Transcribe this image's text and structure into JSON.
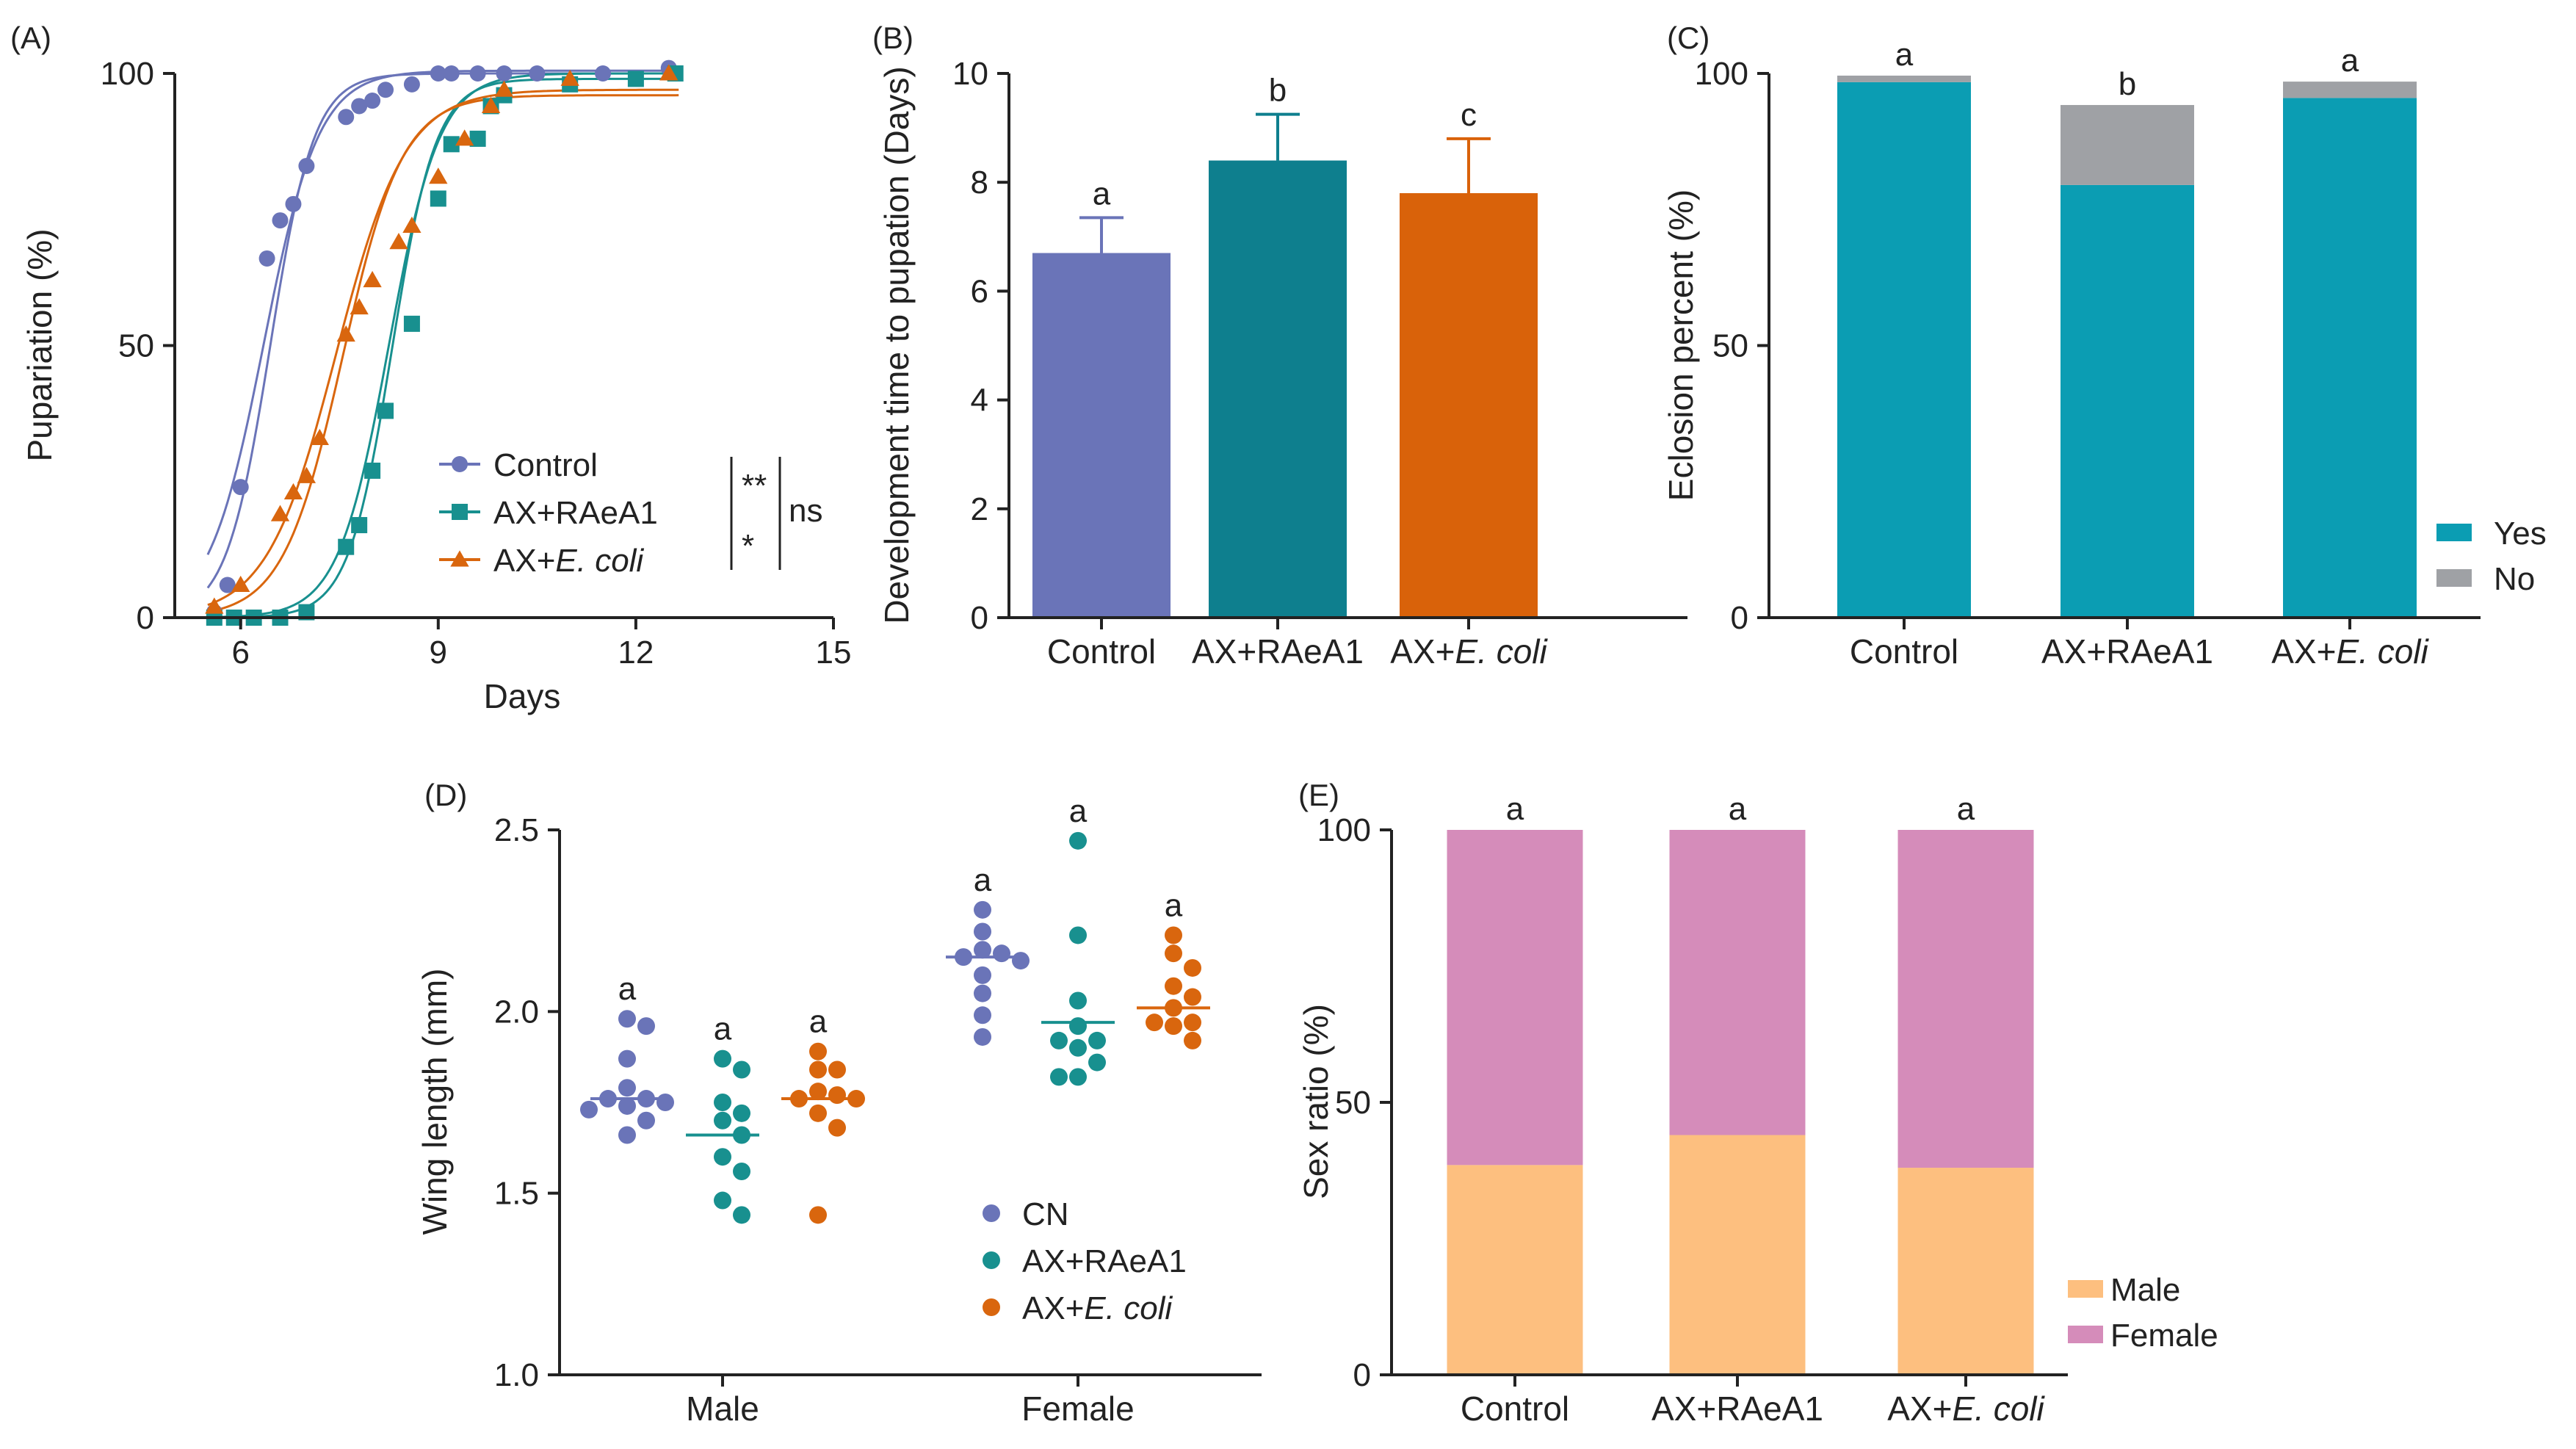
{
  "colors": {
    "control": "#6a74b8",
    "raea1": "#18908f",
    "ecoli": "#d9660e",
    "bar_control": "#6a74b8",
    "bar_raea1": "#0e7f8e",
    "bar_ecoli": "#d9620a",
    "yes": "#0b9db3",
    "no": "#9fa1a5",
    "male": "#fdbf7f",
    "female": "#d58cba"
  },
  "chart_data": [
    {
      "panel": "(A)",
      "type": "scatter",
      "xlabel": "Days",
      "ylabel": "Pupariation (%)",
      "xlim": [
        5,
        15
      ],
      "ylim": [
        0,
        100
      ],
      "xticks": [
        "6",
        "9",
        "12",
        "15"
      ],
      "yticks": [
        "0",
        "50",
        "100"
      ],
      "series": [
        {
          "name": "Control",
          "color_key": "control",
          "x": [
            5.6,
            5.8,
            6.0,
            6.4,
            6.6,
            6.8,
            7.0,
            7.6,
            7.8,
            8.0,
            8.2,
            8.6,
            9.0,
            9.2,
            9.6,
            10.0,
            10.5,
            11.5,
            12.5
          ],
          "y": [
            1,
            6,
            24,
            66,
            73,
            76,
            83,
            92,
            94,
            95,
            97,
            98,
            100,
            100,
            100,
            100,
            100,
            100,
            101
          ]
        },
        {
          "name": "AX+RAeA1",
          "color_key": "raea1",
          "x": [
            5.6,
            5.9,
            6.2,
            6.6,
            7.0,
            7.6,
            7.8,
            8.0,
            8.2,
            8.6,
            9.0,
            9.2,
            9.6,
            9.8,
            10.0,
            11.0,
            12.0,
            12.6
          ],
          "y": [
            0,
            0,
            0,
            0,
            1,
            13,
            17,
            27,
            38,
            54,
            77,
            87,
            88,
            94,
            96,
            98,
            99,
            100
          ]
        },
        {
          "name": "AX+E. coli",
          "color_key": "ecoli",
          "x": [
            5.6,
            6.0,
            6.6,
            6.8,
            7.0,
            7.2,
            7.6,
            7.8,
            8.0,
            8.4,
            8.6,
            9.0,
            9.4,
            9.8,
            10.0,
            11.0,
            12.5
          ],
          "y": [
            2,
            6,
            19,
            23,
            26,
            33,
            52,
            57,
            62,
            69,
            72,
            81,
            88,
            94,
            97,
            99,
            100
          ]
        }
      ],
      "fits": [
        {
          "series": "Control",
          "x0": 6.45,
          "k": 3.0,
          "top": 100,
          "offset": 0
        },
        {
          "series": "Control",
          "x0": 6.35,
          "k": 2.4,
          "top": 100.5,
          "offset": 0
        },
        {
          "series": "AX+RAeA1",
          "x0": 8.3,
          "k": 3.0,
          "top": 99,
          "offset": 0
        },
        {
          "series": "AX+RAeA1",
          "x0": 8.25,
          "k": 2.6,
          "top": 100,
          "offset": 0
        },
        {
          "series": "AX+E. coli",
          "x0": 7.55,
          "k": 2.2,
          "top": 96,
          "offset": 0
        },
        {
          "series": "AX+E. coli",
          "x0": 7.45,
          "k": 1.9,
          "top": 97,
          "offset": 0
        }
      ],
      "legend": {
        "items": [
          "Control",
          "AX+RAeA1",
          "AX+E. coli"
        ],
        "italic_part": "E. coli",
        "sig_inner_top": "**",
        "sig_inner_bottom": "*",
        "sig_outer": "ns"
      }
    },
    {
      "panel": "(B)",
      "type": "bar",
      "ylabel": "Development time to pupation (Days)",
      "ylim": [
        0,
        10
      ],
      "yticks": [
        "0",
        "2",
        "4",
        "6",
        "8",
        "10"
      ],
      "categories": [
        "Control",
        "AX+RAeA1",
        "AX+E. coli"
      ],
      "values": [
        6.7,
        8.4,
        7.8
      ],
      "errors": [
        0.65,
        0.85,
        1.0
      ],
      "letters": [
        "a",
        "b",
        "c"
      ],
      "color_keys": [
        "bar_control",
        "bar_raea1",
        "bar_ecoli"
      ]
    },
    {
      "panel": "(C)",
      "type": "bar",
      "stacked": true,
      "ylabel": "Eclosion percent (%)",
      "ylim": [
        0,
        100
      ],
      "yticks": [
        "0",
        "50",
        "100"
      ],
      "categories": [
        "Control",
        "AX+RAeA1",
        "AX+E. coli"
      ],
      "series": [
        {
          "name": "Yes",
          "color_key": "yes",
          "values": [
            98.4,
            79.5,
            95.5
          ]
        },
        {
          "name": "No",
          "color_key": "no",
          "values": [
            1.2,
            14.7,
            3.0
          ]
        }
      ],
      "letters": [
        "a",
        "b",
        "a"
      ]
    },
    {
      "panel": "(D)",
      "type": "scatter",
      "ylabel": "Wing length (mm)",
      "ylim": [
        1.0,
        2.5
      ],
      "yticks": [
        "1.0",
        "1.5",
        "2.0",
        "2.5"
      ],
      "groups": [
        "Male",
        "Female"
      ],
      "series": [
        {
          "name": "CN",
          "color_key": "control",
          "male": [
            1.98,
            1.96,
            1.87,
            1.79,
            1.76,
            1.76,
            1.74,
            1.75,
            1.73,
            1.7,
            1.66
          ],
          "female": [
            2.28,
            2.22,
            2.17,
            2.16,
            2.15,
            2.14,
            2.1,
            2.05,
            1.99,
            1.93
          ],
          "median_male": 1.76,
          "median_female": 2.15
        },
        {
          "name": "AX+RAeA1",
          "color_key": "raea1",
          "male": [
            1.87,
            1.84,
            1.75,
            1.72,
            1.7,
            1.66,
            1.6,
            1.56,
            1.48,
            1.44
          ],
          "female": [
            2.47,
            2.21,
            2.03,
            1.96,
            1.92,
            1.92,
            1.9,
            1.86,
            1.82,
            1.82
          ],
          "median_male": 1.66,
          "median_female": 1.97
        },
        {
          "name": "AX+E. coli",
          "color_key": "ecoli",
          "male": [
            1.89,
            1.84,
            1.84,
            1.78,
            1.77,
            1.76,
            1.76,
            1.72,
            1.68,
            1.44
          ],
          "female": [
            2.21,
            2.16,
            2.12,
            2.07,
            2.04,
            2.01,
            1.97,
            1.97,
            1.96,
            1.92
          ],
          "median_male": 1.76,
          "median_female": 2.01
        }
      ],
      "letters": {
        "male": [
          "a",
          "a",
          "a"
        ],
        "female": [
          "a",
          "a",
          "a"
        ]
      },
      "legend": {
        "items": [
          "CN",
          "AX+RAeA1",
          "AX+E. coli"
        ],
        "italic_part": "E. coli"
      }
    },
    {
      "panel": "(E)",
      "type": "bar",
      "stacked": true,
      "ylabel": "Sex ratio (%)",
      "ylim": [
        0,
        100
      ],
      "yticks": [
        "0",
        "50",
        "100"
      ],
      "categories": [
        "Control",
        "AX+RAeA1",
        "AX+E. coli"
      ],
      "series": [
        {
          "name": "Male",
          "color_key": "male",
          "values": [
            38.5,
            44.0,
            38.0
          ]
        },
        {
          "name": "Female",
          "color_key": "female",
          "values": [
            61.5,
            56.0,
            62.0
          ]
        }
      ],
      "letters": [
        "a",
        "a",
        "a"
      ]
    }
  ]
}
